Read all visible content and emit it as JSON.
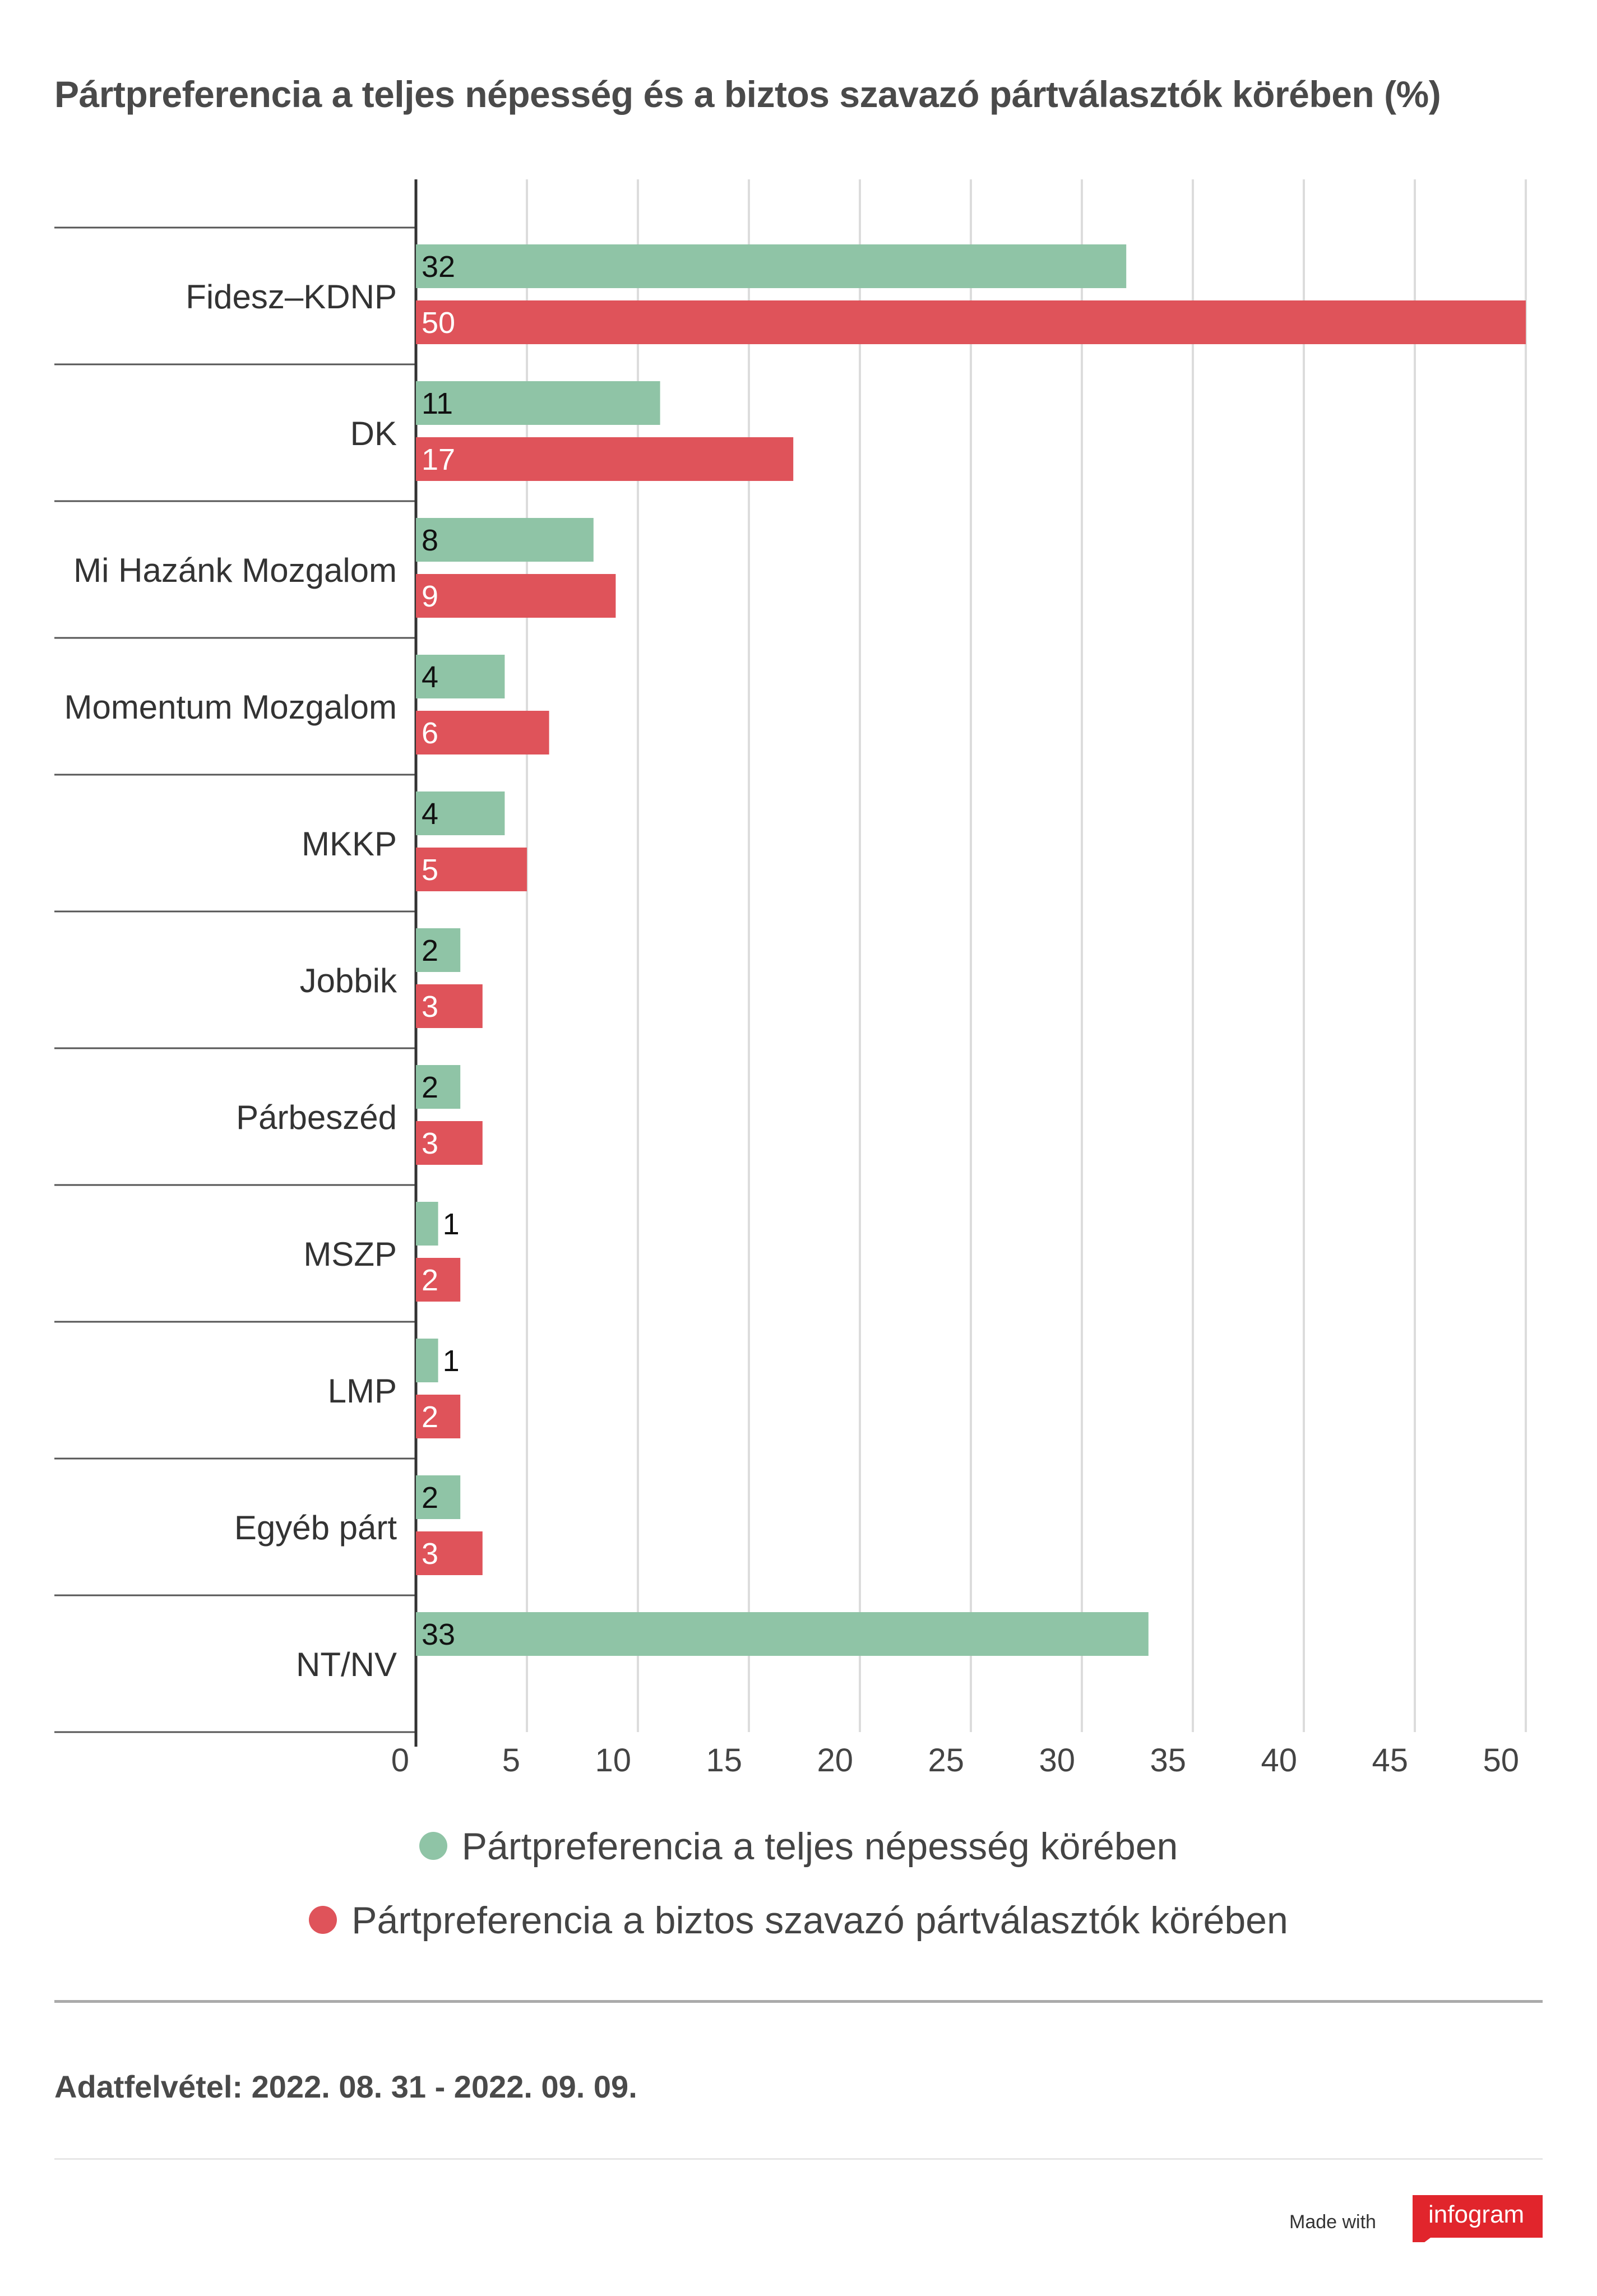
{
  "title": "Pártpreferencia a teljes népesség és a biztos szavazó pártválasztók körében (%)",
  "colors": {
    "series1": "#8fc4a6",
    "series2": "#df535a",
    "grid": "#dcdcdc",
    "separator": "#555555",
    "brand": "#e1252c"
  },
  "chart_data": {
    "type": "bar",
    "orientation": "horizontal",
    "categories": [
      "Fidesz–KDNP",
      "DK",
      "Mi Hazánk Mozgalom",
      "Momentum Mozgalom",
      "MKKP",
      "Jobbik",
      "Párbeszéd",
      "MSZP",
      "LMP",
      "Egyéb párt",
      "NT/NV"
    ],
    "series": [
      {
        "name": "Pártpreferencia a teljes népesség körében",
        "values": [
          32,
          11,
          8,
          4,
          4,
          2,
          2,
          1,
          1,
          2,
          33
        ]
      },
      {
        "name": "Pártpreferencia a biztos szavazó pártválasztók körében",
        "values": [
          50,
          17,
          9,
          6,
          5,
          3,
          3,
          2,
          2,
          3,
          null
        ]
      }
    ],
    "xlim": [
      0,
      50
    ],
    "xticks": [
      0,
      5,
      10,
      15,
      20,
      25,
      30,
      35,
      40,
      45,
      50
    ],
    "grid": true,
    "legend_position": "bottom"
  },
  "legend": {
    "series1_label": "Pártpreferencia a teljes népesség körében",
    "series2_label": "Pártpreferencia a biztos szavazó pártválasztók körében"
  },
  "footnote": "Adatfelvétel: 2022. 08. 31 - 2022. 09. 09.",
  "branding": {
    "made_with": "Made with",
    "brand_name": "infogram",
    "brand_icon": "infogram-logo"
  }
}
